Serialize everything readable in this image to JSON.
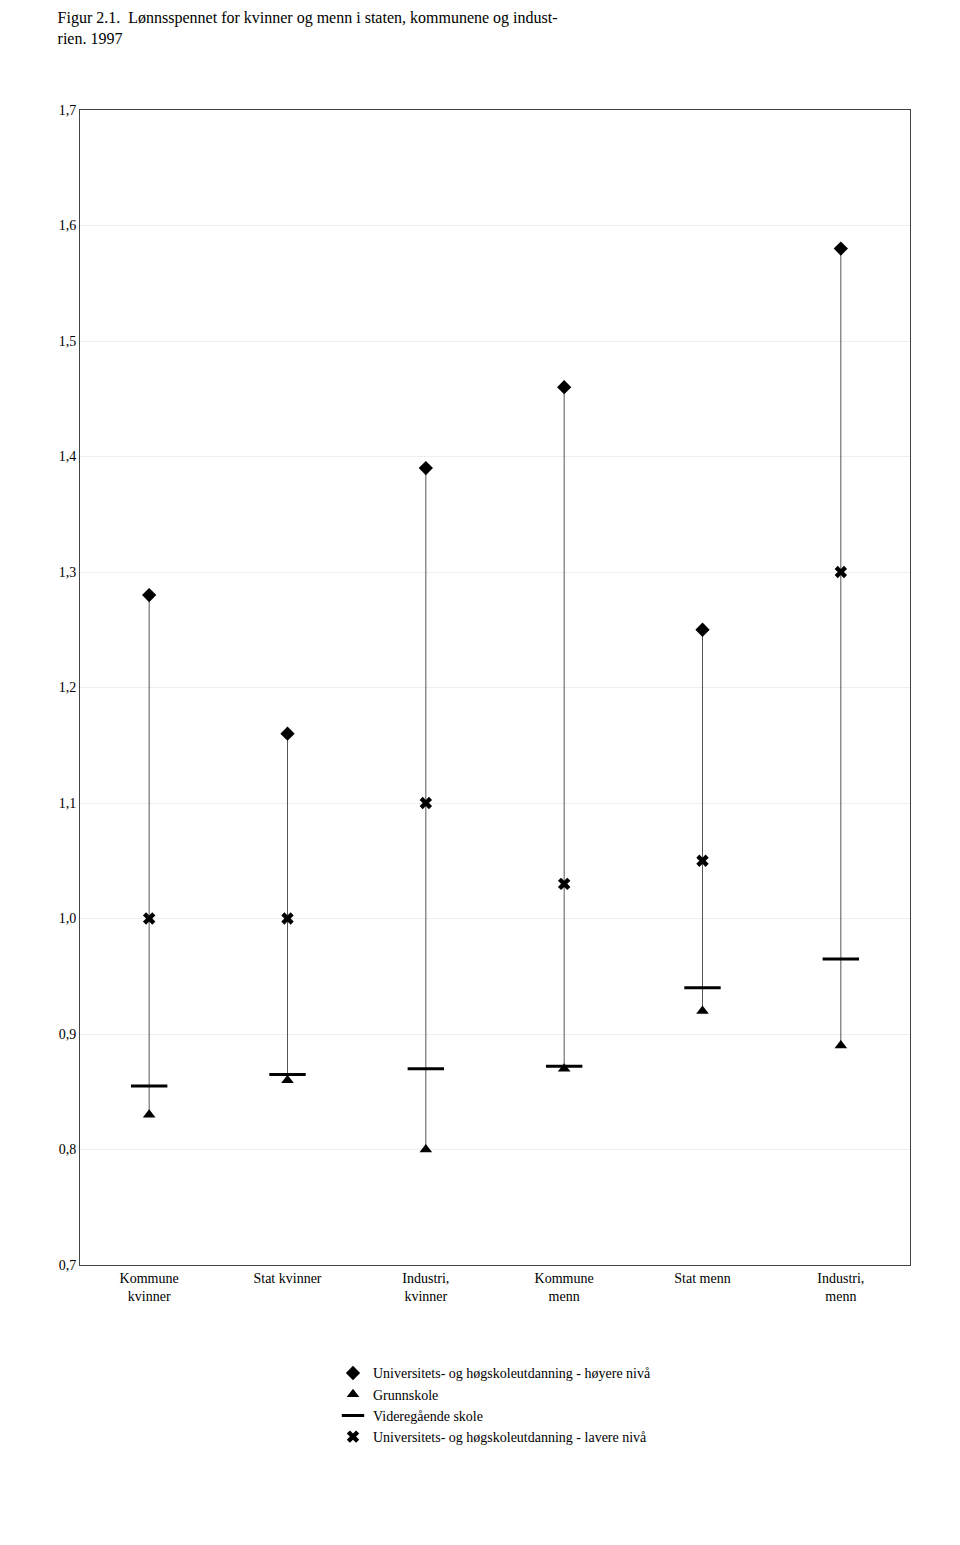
{
  "chart_data": {
    "type": "scatter",
    "title": "Figur 2.1.  Lønnsspennet for kvinner og menn i staten, kommunene og indust-\nrien. 1997",
    "categories": [
      "Kommune\nkvinner",
      "Stat kvinner",
      "Industri,\nkvinner",
      "Kommune\nmenn",
      "Stat menn",
      "Industri,\nmenn"
    ],
    "series": [
      {
        "name": "Universitets- og høgskoleutdanning - høyere nivå",
        "color": "#000000",
        "marker": "diamond",
        "values": [
          1.28,
          1.16,
          1.39,
          1.46,
          1.25,
          1.58
        ]
      },
      {
        "name": "Grunnskole",
        "color": "#000000",
        "marker": "triangle",
        "values": [
          0.83,
          0.86,
          0.8,
          0.87,
          0.92,
          0.89
        ]
      },
      {
        "name": "Videregående skole",
        "color": "#000000",
        "marker": "dash",
        "values": [
          0.855,
          0.865,
          0.87,
          0.872,
          0.94,
          0.965
        ]
      },
      {
        "name": "Universitets- og høgskoleutdanning - lavere nivå",
        "color": "#000000",
        "marker": "cross",
        "values": [
          1.0,
          1.0,
          1.1,
          1.03,
          1.05,
          1.3
        ]
      }
    ],
    "ylim": [
      0.7,
      1.7
    ],
    "yticks": [
      {
        "value": 0.7,
        "label": "0,7"
      },
      {
        "value": 0.8,
        "label": "0,8"
      },
      {
        "value": 0.9,
        "label": "0,9"
      },
      {
        "value": 1.0,
        "label": "1,0"
      },
      {
        "value": 1.1,
        "label": "1,1"
      },
      {
        "value": 1.2,
        "label": "1,2"
      },
      {
        "value": 1.3,
        "label": "1,3"
      },
      {
        "value": 1.4,
        "label": "1,4"
      },
      {
        "value": 1.5,
        "label": "1,5"
      },
      {
        "value": 1.6,
        "label": "1,6"
      },
      {
        "value": 1.7,
        "label": "1,7"
      }
    ],
    "grid": true,
    "legend": "bottom"
  }
}
